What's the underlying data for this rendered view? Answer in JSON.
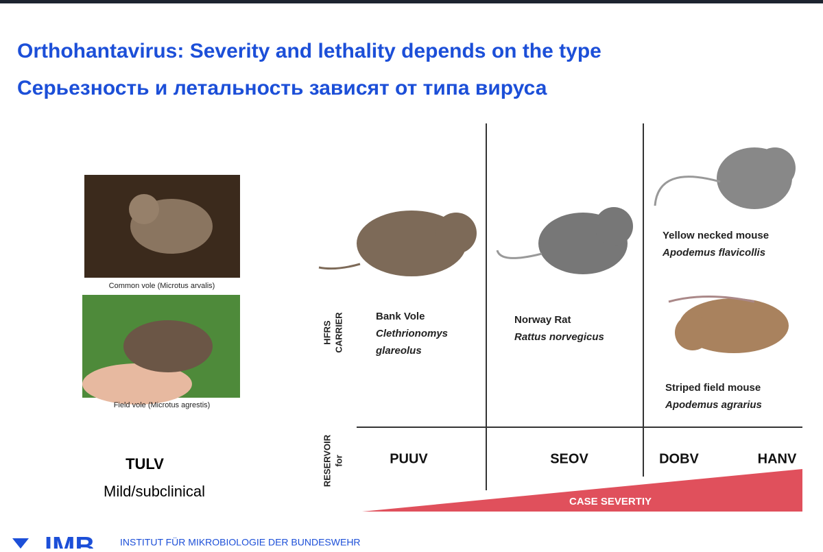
{
  "title": {
    "en": "Orthohantavirus: Severity and lethality depends on the type",
    "ru": "Серьезность и летальность зависят от типа вируса"
  },
  "left": {
    "photo_1_caption": "Common vole (Microtus arvalis)",
    "photo_2_caption": "Field vole (Microtus agrestis)",
    "virus": "TULV",
    "severity": "Mild/subclinical"
  },
  "row_labels": {
    "carrier": [
      "HFRS",
      "CARRIER"
    ],
    "reservoir": [
      "RESERVOIR",
      "for"
    ]
  },
  "carriers": [
    {
      "name": "Bank Vole",
      "latin": [
        "Clethrionomys",
        "glareolus"
      ]
    },
    {
      "name": "Norway Rat",
      "latin": [
        "Rattus norvegicus"
      ]
    },
    {
      "name": "Yellow necked mouse",
      "latin": [
        "Apodemus flavicollis"
      ]
    },
    {
      "name": "Striped field mouse",
      "latin": [
        "Apodemus agrarius"
      ]
    }
  ],
  "viruses": [
    "PUUV",
    "SEOV",
    "DOBV",
    "HANV"
  ],
  "severity_bar": "CASE SEVERTIY",
  "footer": {
    "logo": "IMB",
    "institute": "INSTITUT FÜR MIKROBIOLOGIE DER BUNDESWEHR"
  }
}
